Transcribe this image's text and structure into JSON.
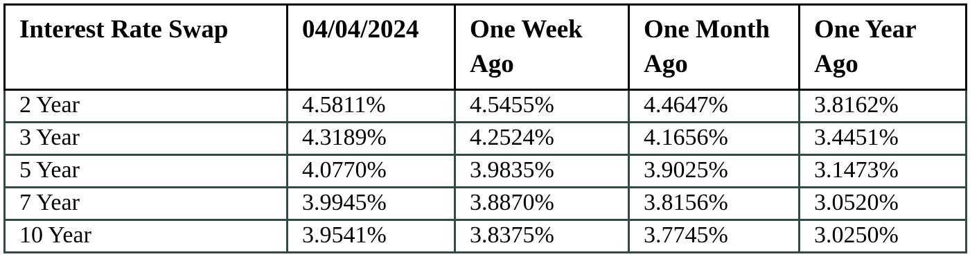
{
  "chart_data": {
    "type": "table",
    "title": "Interest Rate Swap",
    "columns": [
      "Interest Rate Swap",
      "04/04/2024",
      "One Week Ago",
      "One Month Ago",
      "One Year Ago"
    ],
    "rows": [
      [
        "2 Year",
        "4.5811%",
        "4.5455%",
        "4.4647%",
        "3.8162%"
      ],
      [
        "3 Year",
        "4.3189%",
        "4.2524%",
        "4.1656%",
        "3.4451%"
      ],
      [
        "5 Year",
        "4.0770%",
        "3.9835%",
        "3.9025%",
        "3.1473%"
      ],
      [
        "7 Year",
        "3.9945%",
        "3.8870%",
        "3.8156%",
        "3.0520%"
      ],
      [
        "10 Year",
        "3.9541%",
        "3.8375%",
        "3.7745%",
        "3.0250%"
      ]
    ],
    "values_percent": [
      [
        4.5811,
        4.5455,
        4.4647,
        3.8162
      ],
      [
        4.3189,
        4.2524,
        4.1656,
        3.4451
      ],
      [
        4.077,
        3.9835,
        3.9025,
        3.1473
      ],
      [
        3.9945,
        3.887,
        3.8156,
        3.052
      ],
      [
        3.9541,
        3.8375,
        3.7745,
        3.025
      ]
    ],
    "layout_hints": {
      "header_border_color": "#000000",
      "body_border_color": "#2F4A47",
      "grid": true,
      "header_bold": true
    }
  },
  "colors": {
    "header_border": "#000000",
    "body_border": "#2F4A47",
    "text": "#000000",
    "background": "#FFFFFF"
  }
}
